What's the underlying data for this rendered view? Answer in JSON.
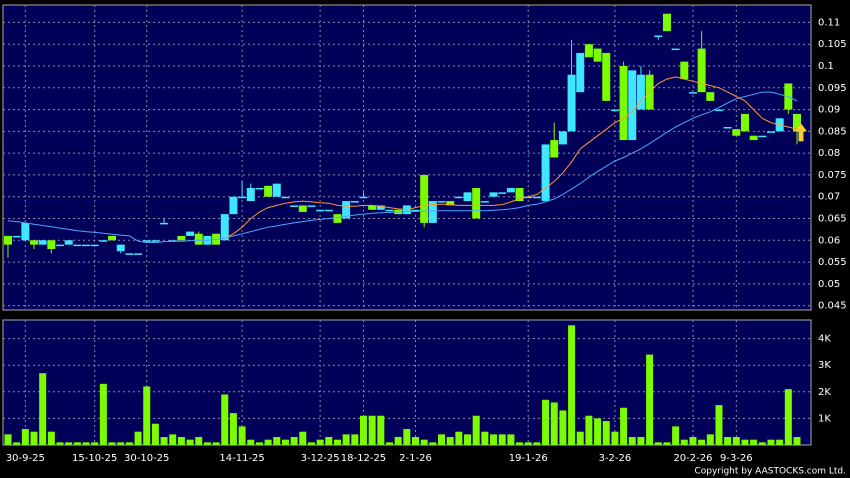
{
  "chart_data": {
    "type": "candlestick",
    "source": "Copyright by AASTOCKS.com Ltd.",
    "categories": [
      null,
      null,
      "30-9-25",
      null,
      null,
      null,
      null,
      null,
      null,
      null,
      "15-10-25",
      null,
      null,
      null,
      null,
      null,
      "30-10-25",
      null,
      null,
      null,
      null,
      null,
      null,
      null,
      null,
      null,
      null,
      "14-11-25",
      null,
      null,
      null,
      null,
      null,
      null,
      null,
      null,
      "3-12-25",
      null,
      null,
      null,
      null,
      "18-12-25",
      null,
      null,
      null,
      null,
      null,
      "2-1-26",
      null,
      null,
      null,
      null,
      null,
      null,
      null,
      null,
      null,
      null,
      null,
      null,
      "19-1-26",
      null,
      null,
      null,
      null,
      null,
      null,
      null,
      null,
      null,
      "3-2-26",
      null,
      null,
      null,
      null,
      null,
      null,
      null,
      null,
      "20-2-26",
      null,
      null,
      null,
      null,
      "9-3-26",
      null,
      null,
      null,
      null,
      null,
      null,
      null
    ],
    "open": [
      0.061,
      0.061,
      0.06,
      0.06,
      0.059,
      0.06,
      0.059,
      0.059,
      0.059,
      0.059,
      0.059,
      0.06,
      0.061,
      0.0575,
      0.057,
      0.057,
      0.06,
      0.06,
      0.064,
      0.06,
      0.061,
      0.061,
      0.0615,
      0.059,
      0.0615,
      0.06,
      0.066,
      0.07,
      0.069,
      0.072,
      0.0725,
      0.07,
      0.07,
      0.068,
      0.068,
      0.068,
      0.067,
      0.067,
      0.066,
      0.065,
      0.069,
      0.07,
      0.068,
      0.067,
      0.067,
      0.067,
      0.066,
      0.067,
      0.075,
      0.064,
      0.069,
      0.069,
      0.07,
      0.069,
      0.072,
      0.069,
      0.07,
      0.071,
      0.071,
      0.072,
      0.07,
      0.07,
      0.069,
      0.083,
      0.082,
      0.085,
      0.094,
      0.105,
      0.104,
      0.103,
      0.09,
      0.1,
      0.083,
      0.09,
      0.098,
      0.107,
      0.112,
      0.104,
      0.101,
      0.094,
      0.104,
      0.094,
      0.09,
      0.086,
      0.0855,
      0.089,
      0.084,
      0.084,
      0.085,
      0.085,
      0.096,
      0.089
    ],
    "high": [
      0.061,
      0.061,
      0.064,
      0.06,
      0.06,
      0.06,
      0.059,
      0.06,
      0.059,
      0.059,
      0.059,
      0.06,
      0.061,
      0.059,
      0.057,
      0.057,
      0.06,
      0.06,
      0.065,
      0.06,
      0.061,
      0.062,
      0.062,
      0.061,
      0.0615,
      0.066,
      0.07,
      0.0735,
      0.073,
      0.072,
      0.0725,
      0.073,
      0.07,
      0.068,
      0.068,
      0.068,
      0.067,
      0.067,
      0.066,
      0.069,
      0.069,
      0.071,
      0.068,
      0.068,
      0.067,
      0.067,
      0.068,
      0.067,
      0.075,
      0.069,
      0.069,
      0.069,
      0.07,
      0.071,
      0.072,
      0.069,
      0.071,
      0.071,
      0.072,
      0.072,
      0.07,
      0.07,
      0.082,
      0.087,
      0.085,
      0.106,
      0.103,
      0.105,
      0.104,
      0.103,
      0.09,
      0.101,
      0.099,
      0.1,
      0.099,
      0.107,
      0.112,
      0.104,
      0.101,
      0.094,
      0.108,
      0.094,
      0.09,
      0.086,
      0.0855,
      0.089,
      0.084,
      0.084,
      0.085,
      0.088,
      0.096,
      0.089
    ],
    "low": [
      0.056,
      0.061,
      0.06,
      0.058,
      0.059,
      0.057,
      0.059,
      0.059,
      0.059,
      0.059,
      0.059,
      0.06,
      0.06,
      0.057,
      0.057,
      0.057,
      0.06,
      0.06,
      0.064,
      0.06,
      0.06,
      0.061,
      0.059,
      0.059,
      0.059,
      0.06,
      0.066,
      0.07,
      0.069,
      0.072,
      0.07,
      0.07,
      0.07,
      0.068,
      0.0665,
      0.068,
      0.067,
      0.067,
      0.064,
      0.065,
      0.069,
      0.07,
      0.067,
      0.067,
      0.067,
      0.066,
      0.066,
      0.067,
      0.063,
      0.064,
      0.069,
      0.068,
      0.07,
      0.069,
      0.065,
      0.069,
      0.07,
      0.071,
      0.071,
      0.069,
      0.07,
      0.07,
      0.069,
      0.079,
      0.082,
      0.085,
      0.094,
      0.102,
      0.101,
      0.092,
      0.09,
      0.083,
      0.083,
      0.09,
      0.09,
      0.106,
      0.108,
      0.104,
      0.097,
      0.094,
      0.094,
      0.092,
      0.09,
      0.086,
      0.084,
      0.085,
      0.083,
      0.084,
      0.085,
      0.085,
      0.089,
      0.082
    ],
    "close": [
      0.059,
      0.061,
      0.064,
      0.059,
      0.06,
      0.058,
      0.059,
      0.06,
      0.059,
      0.059,
      0.059,
      0.06,
      0.06,
      0.059,
      0.057,
      0.057,
      0.06,
      0.06,
      0.064,
      0.06,
      0.06,
      0.062,
      0.059,
      0.061,
      0.059,
      0.066,
      0.07,
      0.07,
      0.072,
      0.072,
      0.07,
      0.073,
      0.07,
      0.068,
      0.0665,
      0.068,
      0.067,
      0.067,
      0.064,
      0.069,
      0.069,
      0.07,
      0.067,
      0.068,
      0.067,
      0.066,
      0.068,
      0.067,
      0.064,
      0.069,
      0.069,
      0.068,
      0.07,
      0.071,
      0.065,
      0.069,
      0.071,
      0.071,
      0.072,
      0.069,
      0.07,
      0.07,
      0.082,
      0.079,
      0.085,
      0.098,
      0.103,
      0.102,
      0.101,
      0.092,
      0.09,
      0.083,
      0.099,
      0.098,
      0.09,
      0.107,
      0.108,
      0.104,
      0.097,
      0.094,
      0.094,
      0.092,
      0.09,
      0.086,
      0.084,
      0.085,
      0.083,
      0.084,
      0.085,
      0.088,
      0.09,
      0.085
    ],
    "up_color": "#3fe6ff",
    "down_color": "#7cfc00",
    "ylim": [
      0.044,
      0.114
    ],
    "yticks": [
      0.045,
      0.05,
      0.055,
      0.06,
      0.065,
      0.07,
      0.075,
      0.08,
      0.085,
      0.09,
      0.095,
      0.1,
      0.105,
      0.11
    ],
    "grid": true,
    "lines": [
      {
        "color": "#4aa8ff",
        "values": [
          0.0645,
          0.0643,
          0.064,
          0.0637,
          0.0634,
          0.0631,
          0.0628,
          0.0625,
          0.0622,
          0.062,
          0.0618,
          0.0616,
          0.0614,
          0.0612,
          0.061,
          0.0598,
          0.0595,
          0.0595,
          0.0597,
          0.0598,
          0.0598,
          0.0599,
          0.06,
          0.06,
          0.0602,
          0.0605,
          0.061,
          0.0615,
          0.062,
          0.0625,
          0.063,
          0.0633,
          0.0637,
          0.064,
          0.0643,
          0.0646,
          0.0648,
          0.065,
          0.0652,
          0.0655,
          0.0658,
          0.066,
          0.0662,
          0.0663,
          0.0664,
          0.0665,
          0.0666,
          0.0666,
          0.0667,
          0.0668,
          0.0668,
          0.0668,
          0.0668,
          0.0668,
          0.0668,
          0.0668,
          0.0669,
          0.067,
          0.0672,
          0.0675,
          0.068,
          0.0683,
          0.0688,
          0.0695,
          0.0705,
          0.0718,
          0.073,
          0.0745,
          0.0758,
          0.077,
          0.0782,
          0.079,
          0.08,
          0.081,
          0.0822,
          0.0835,
          0.0848,
          0.086,
          0.087,
          0.088,
          0.0888,
          0.0895,
          0.0905,
          0.0915,
          0.0925,
          0.093,
          0.0935,
          0.094,
          0.094,
          0.0935,
          0.093,
          0.092
        ]
      },
      {
        "color": "#ff9933",
        "values": [
          null,
          null,
          null,
          null,
          null,
          null,
          null,
          null,
          null,
          null,
          null,
          null,
          null,
          null,
          null,
          null,
          null,
          null,
          null,
          null,
          null,
          null,
          null,
          null,
          null,
          0.0605,
          0.0615,
          0.063,
          0.065,
          0.0665,
          0.0675,
          0.068,
          0.0685,
          0.0688,
          0.069,
          0.0688,
          0.0686,
          0.0685,
          0.068,
          0.0678,
          0.0678,
          0.068,
          0.068,
          0.0678,
          0.0675,
          0.0672,
          0.067,
          0.0675,
          0.068,
          0.0682,
          0.0683,
          0.0682,
          0.068,
          0.068,
          0.068,
          0.068,
          0.068,
          0.0682,
          0.0688,
          0.0695,
          0.07,
          0.0705,
          0.072,
          0.0735,
          0.0755,
          0.078,
          0.081,
          0.0825,
          0.084,
          0.0855,
          0.087,
          0.088,
          0.0895,
          0.092,
          0.094,
          0.096,
          0.097,
          0.0975,
          0.097,
          0.0965,
          0.096,
          0.0955,
          0.095,
          0.094,
          0.093,
          0.092,
          0.09,
          0.088,
          0.087,
          0.0865,
          0.086,
          0.0855
        ]
      }
    ],
    "volume": {
      "color": "#7cfc00",
      "values": [
        400,
        100,
        600,
        500,
        2700,
        500,
        100,
        100,
        100,
        100,
        100,
        2300,
        100,
        100,
        100,
        500,
        2200,
        800,
        300,
        400,
        300,
        200,
        300,
        100,
        100,
        1900,
        1200,
        700,
        200,
        100,
        200,
        300,
        200,
        300,
        500,
        100,
        200,
        300,
        200,
        400,
        400,
        1100,
        1100,
        1100,
        100,
        300,
        600,
        300,
        200,
        100,
        400,
        300,
        500,
        400,
        1100,
        500,
        400,
        400,
        400,
        100,
        100,
        100,
        1700,
        1600,
        1300,
        4500,
        500,
        1100,
        1000,
        900,
        500,
        1400,
        300,
        300,
        3400,
        100,
        100,
        700,
        200,
        300,
        200,
        400,
        1500,
        300,
        300,
        200,
        200,
        100,
        200,
        200,
        2100,
        300
      ],
      "ylim": [
        0,
        4700
      ],
      "yticks": [
        {
          "value": 1000,
          "label": "1K"
        },
        {
          "value": 2000,
          "label": "2K"
        },
        {
          "value": 3000,
          "label": "3K"
        },
        {
          "value": 4000,
          "label": "4K"
        }
      ]
    }
  }
}
